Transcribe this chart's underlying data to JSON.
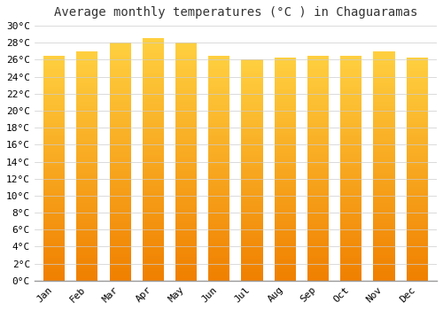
{
  "title": "Average monthly temperatures (°C ) in Chaguaramas",
  "months": [
    "Jan",
    "Feb",
    "Mar",
    "Apr",
    "May",
    "Jun",
    "Jul",
    "Aug",
    "Sep",
    "Oct",
    "Nov",
    "Dec"
  ],
  "values": [
    26.5,
    27.0,
    28.0,
    28.5,
    28.0,
    26.5,
    26.0,
    26.3,
    26.5,
    26.5,
    27.0,
    26.3
  ],
  "bar_color": "#FFA500",
  "bar_edge_color": "#E07000",
  "ylim": [
    0,
    30
  ],
  "ytick_step": 2,
  "background_color": "#ffffff",
  "grid_color": "#cccccc",
  "title_fontsize": 10,
  "tick_fontsize": 8,
  "font_family": "monospace"
}
